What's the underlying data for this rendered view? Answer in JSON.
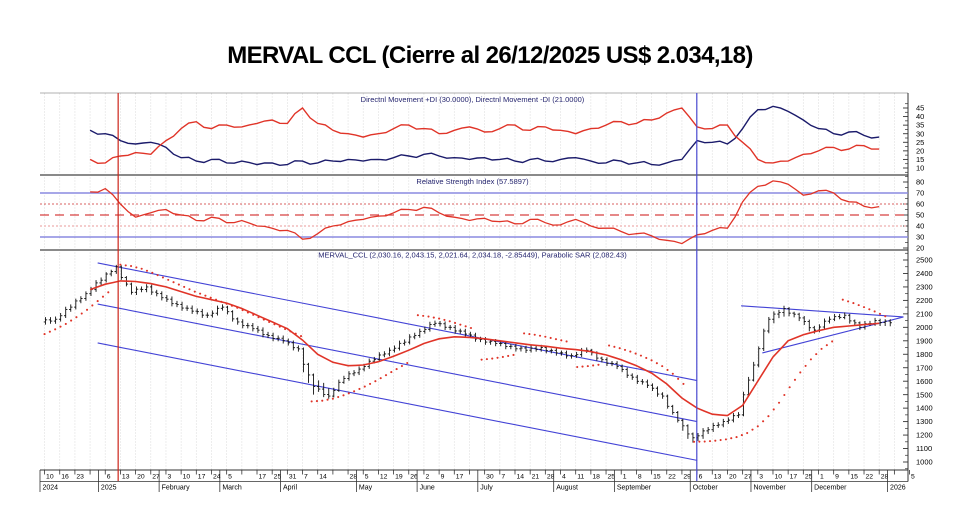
{
  "title": "MERVAL CCL (Cierre al 26/12/2025 US$ 2.034,18)",
  "colors": {
    "red_line": "#e03428",
    "navy_line": "#1b1b6b",
    "trend_blue": "#4343d6",
    "band_blue": "#8a8ae0",
    "event_red": "#cc2418",
    "event_blue": "#4a4ad0",
    "grid": "#cccccc",
    "separator": "#8a8a8a",
    "bar_black": "#111111",
    "label_navy": "#24246e"
  },
  "x_axis": {
    "tick_labels": [
      "10",
      "16",
      "23",
      "",
      "6",
      "13",
      "20",
      "27",
      "3",
      "10",
      "17",
      "24",
      "5",
      "",
      "17",
      "25",
      "31",
      "7",
      "14",
      "",
      "28",
      "5",
      "12",
      "19",
      "26",
      "2",
      "9",
      "17",
      "",
      "30",
      "7",
      "14",
      "21",
      "28",
      "4",
      "11",
      "18",
      "25",
      "1",
      "8",
      "15",
      "22",
      "29",
      "6",
      "13",
      "20",
      "27",
      "3",
      "10",
      "17",
      "25",
      "1",
      "9",
      "15",
      "22",
      "28",
      "",
      "5"
    ],
    "months": [
      {
        "label": "2024",
        "start": 0
      },
      {
        "label": "2025",
        "start": 4
      },
      {
        "label": "February",
        "start": 8
      },
      {
        "label": "March",
        "start": 12
      },
      {
        "label": "April",
        "start": 16
      },
      {
        "label": "May",
        "start": 21
      },
      {
        "label": "June",
        "start": 25
      },
      {
        "label": "July",
        "start": 29
      },
      {
        "label": "August",
        "start": 34
      },
      {
        "label": "September",
        "start": 38
      },
      {
        "label": "October",
        "start": 43
      },
      {
        "label": "November",
        "start": 47
      },
      {
        "label": "December",
        "start": 51
      },
      {
        "label": "2026",
        "start": 56
      }
    ]
  },
  "event_lines": [
    {
      "t": 4.85,
      "color": "#cc2418",
      "name": "red-marker-line"
    },
    {
      "t": 42.98,
      "color": "#4a4ad0",
      "name": "blue-marker-line"
    }
  ],
  "chart_data": [
    {
      "type": "line",
      "panel": "di",
      "title": "Directnl Movement +DI (30.0000), Directnl Movement -DI (21.0000)",
      "ylim": [
        6,
        54
      ],
      "yticks": [
        10,
        15,
        20,
        25,
        30,
        35,
        40,
        45
      ],
      "series": [
        {
          "name": "+DI",
          "color": "#1b1b6b",
          "values": [
            null,
            null,
            null,
            32,
            30,
            26,
            24,
            25,
            22,
            16,
            14,
            15,
            13,
            14,
            12,
            13,
            12,
            14,
            13,
            14,
            15,
            14,
            15,
            16,
            17,
            18,
            17,
            16,
            15,
            16,
            15,
            14,
            15,
            14,
            15,
            16,
            14,
            13,
            14,
            13,
            12,
            13,
            15,
            26,
            25,
            24,
            33,
            44,
            46,
            43,
            38,
            33,
            30,
            31,
            29,
            28
          ]
        },
        {
          "name": "-DI",
          "color": "#e03428",
          "values": [
            null,
            null,
            null,
            15,
            13,
            17,
            19,
            18,
            26,
            33,
            37,
            33,
            35,
            34,
            36,
            38,
            36,
            45,
            36,
            32,
            30,
            28,
            30,
            33,
            35,
            33,
            30,
            32,
            34,
            31,
            33,
            35,
            32,
            34,
            32,
            30,
            33,
            35,
            37,
            36,
            38,
            42,
            45,
            34,
            33,
            35,
            25,
            15,
            13,
            14,
            18,
            20,
            22,
            21,
            23,
            21
          ]
        }
      ]
    },
    {
      "type": "line",
      "panel": "rsi",
      "title": "Relative Strength Index (57.5897)",
      "ylim": [
        18,
        86
      ],
      "yticks": [
        20,
        30,
        40,
        50,
        60,
        70,
        80
      ],
      "ref_lines": [
        {
          "value": 70,
          "color": "#8a8ae0",
          "width": 1.4,
          "dash": ""
        },
        {
          "value": 30,
          "color": "#8a8ae0",
          "width": 1.4,
          "dash": ""
        },
        {
          "value": 60,
          "color": "#d96060",
          "width": 1,
          "dash": "2,2"
        },
        {
          "value": 40,
          "color": "#ea9a9a",
          "width": 1,
          "dash": "2,2"
        },
        {
          "value": 50,
          "color": "#d84040",
          "width": 1.2,
          "dash": "9,6"
        }
      ],
      "series": [
        {
          "name": "RSI",
          "color": "#e03428",
          "values": [
            null,
            null,
            null,
            71,
            74,
            60,
            48,
            52,
            55,
            50,
            45,
            48,
            43,
            45,
            40,
            38,
            36,
            28,
            33,
            40,
            44,
            46,
            49,
            52,
            55,
            57,
            52,
            48,
            45,
            47,
            44,
            42,
            46,
            43,
            41,
            46,
            40,
            38,
            35,
            33,
            31,
            27,
            24,
            32,
            36,
            38,
            62,
            76,
            81,
            78,
            68,
            72,
            70,
            62,
            58,
            57.6
          ]
        }
      ]
    },
    {
      "type": "candlestick",
      "panel": "price",
      "title": "MERVAL_CCL (2,030.16, 2,043.15, 2,021.64, 2,034.18, -2.85449), Parabolic SAR (2,082.43)",
      "ylim": [
        940,
        2575
      ],
      "yticks": [
        1000,
        1100,
        1200,
        1300,
        1400,
        1500,
        1600,
        1700,
        1800,
        1900,
        2000,
        2100,
        2200,
        2300,
        2400,
        2500
      ],
      "candles": [
        [
          2040,
          2085,
          2015,
          2060
        ],
        [
          2060,
          2175,
          2040,
          2150
        ],
        [
          2150,
          2270,
          2130,
          2250
        ],
        [
          2250,
          2375,
          2230,
          2350
        ],
        [
          2350,
          2465,
          2330,
          2450
        ],
        [
          2450,
          2460,
          2240,
          2260
        ],
        [
          2260,
          2325,
          2235,
          2300
        ],
        [
          2300,
          2320,
          2195,
          2220
        ],
        [
          2220,
          2245,
          2145,
          2170
        ],
        [
          2170,
          2195,
          2095,
          2120
        ],
        [
          2120,
          2145,
          2065,
          2090
        ],
        [
          2090,
          2175,
          2070,
          2150
        ],
        [
          2150,
          2160,
          2015,
          2040
        ],
        [
          2040,
          2065,
          1965,
          1990
        ],
        [
          1990,
          2015,
          1915,
          1940
        ],
        [
          1940,
          1965,
          1875,
          1900
        ],
        [
          1900,
          1920,
          1815,
          1840
        ],
        [
          1840,
          1850,
          1475,
          1560
        ],
        [
          1560,
          1625,
          1465,
          1490
        ],
        [
          1490,
          1645,
          1480,
          1620
        ],
        [
          1620,
          1715,
          1600,
          1690
        ],
        [
          1690,
          1785,
          1670,
          1760
        ],
        [
          1760,
          1855,
          1740,
          1830
        ],
        [
          1830,
          1915,
          1810,
          1890
        ],
        [
          1890,
          1995,
          1870,
          1970
        ],
        [
          1970,
          2055,
          1950,
          2030
        ],
        [
          2030,
          2050,
          1975,
          2000
        ],
        [
          2000,
          2020,
          1925,
          1950
        ],
        [
          1950,
          1970,
          1885,
          1910
        ],
        [
          1910,
          1930,
          1855,
          1880
        ],
        [
          1880,
          1900,
          1835,
          1860
        ],
        [
          1860,
          1880,
          1805,
          1830
        ],
        [
          1830,
          1875,
          1810,
          1850
        ],
        [
          1850,
          1865,
          1785,
          1810
        ],
        [
          1810,
          1830,
          1765,
          1790
        ],
        [
          1790,
          1855,
          1770,
          1830
        ],
        [
          1830,
          1840,
          1735,
          1760
        ],
        [
          1760,
          1780,
          1685,
          1710
        ],
        [
          1710,
          1725,
          1605,
          1630
        ],
        [
          1630,
          1650,
          1545,
          1570
        ],
        [
          1570,
          1585,
          1465,
          1490
        ],
        [
          1490,
          1500,
          1290,
          1310
        ],
        [
          1310,
          1320,
          1130,
          1180
        ],
        [
          1180,
          1265,
          1150,
          1240
        ],
        [
          1240,
          1325,
          1220,
          1300
        ],
        [
          1300,
          1375,
          1280,
          1350
        ],
        [
          1350,
          1750,
          1340,
          1720
        ],
        [
          1720,
          2080,
          1700,
          2060
        ],
        [
          2060,
          2165,
          2020,
          2140
        ],
        [
          2140,
          2150,
          2040,
          2070
        ],
        [
          2070,
          2085,
          1945,
          1980
        ],
        [
          1980,
          2085,
          1960,
          2060
        ],
        [
          2060,
          2115,
          2045,
          2090
        ],
        [
          2090,
          2100,
          1975,
          2000
        ],
        [
          2000,
          2075,
          1980,
          2050
        ],
        [
          2050,
          2065,
          2000,
          2034
        ]
      ],
      "ma": {
        "name": "moving-average",
        "color": "#e03428",
        "values": [
          null,
          null,
          null,
          2280,
          2320,
          2345,
          2340,
          2325,
          2300,
          2265,
          2230,
          2205,
          2180,
          2140,
          2090,
          2040,
          1990,
          1905,
          1800,
          1740,
          1715,
          1720,
          1745,
          1785,
          1830,
          1880,
          1915,
          1930,
          1925,
          1915,
          1900,
          1885,
          1870,
          1860,
          1845,
          1835,
          1820,
          1795,
          1760,
          1715,
          1660,
          1580,
          1475,
          1400,
          1355,
          1345,
          1420,
          1600,
          1780,
          1900,
          1945,
          1975,
          2000,
          2010,
          2020,
          2030
        ]
      },
      "sar_segments": [
        [
          [
            0,
            1950
          ],
          [
            0.7,
            1985
          ],
          [
            1.4,
            2025
          ],
          [
            2.1,
            2075
          ],
          [
            2.8,
            2130
          ],
          [
            3.5,
            2195
          ],
          [
            4.2,
            2260
          ]
        ],
        [
          [
            5,
            2465
          ],
          [
            5.7,
            2455
          ],
          [
            6.4,
            2435
          ],
          [
            7.1,
            2405
          ],
          [
            7.8,
            2370
          ],
          [
            8.5,
            2335
          ],
          [
            9.2,
            2300
          ],
          [
            9.9,
            2265
          ],
          [
            10.6,
            2235
          ],
          [
            11.3,
            2205
          ],
          [
            12,
            2175
          ],
          [
            12.7,
            2145
          ],
          [
            13.4,
            2110
          ],
          [
            14.1,
            2075
          ],
          [
            14.8,
            2040
          ],
          [
            15.5,
            2005
          ],
          [
            16.2,
            1970
          ],
          [
            16.9,
            1935
          ]
        ],
        [
          [
            17.6,
            1450
          ],
          [
            18.3,
            1455
          ],
          [
            19,
            1470
          ],
          [
            19.7,
            1495
          ],
          [
            20.4,
            1525
          ],
          [
            21.1,
            1560
          ],
          [
            21.8,
            1600
          ],
          [
            22.5,
            1645
          ],
          [
            23.2,
            1690
          ],
          [
            23.9,
            1735
          ]
        ],
        [
          [
            24.6,
            2090
          ],
          [
            25.3,
            2080
          ],
          [
            26,
            2065
          ],
          [
            26.7,
            2045
          ],
          [
            27.4,
            2020
          ],
          [
            28.1,
            1995
          ]
        ],
        [
          [
            28.8,
            1760
          ],
          [
            29.5,
            1768
          ],
          [
            30.2,
            1780
          ],
          [
            30.9,
            1795
          ]
        ],
        [
          [
            31.6,
            1955
          ],
          [
            32.3,
            1945
          ],
          [
            33,
            1930
          ],
          [
            33.7,
            1912
          ],
          [
            34.4,
            1895
          ]
        ],
        [
          [
            35.1,
            1705
          ],
          [
            35.8,
            1712
          ],
          [
            36.5,
            1722
          ]
        ],
        [
          [
            37.2,
            1865
          ],
          [
            37.9,
            1845
          ],
          [
            38.6,
            1820
          ],
          [
            39.3,
            1790
          ],
          [
            40,
            1755
          ],
          [
            40.7,
            1712
          ],
          [
            41.4,
            1655
          ],
          [
            42.1,
            1580
          ]
        ],
        [
          [
            42.8,
            1150
          ],
          [
            43.5,
            1152
          ],
          [
            44.2,
            1158
          ],
          [
            44.9,
            1168
          ],
          [
            45.6,
            1185
          ],
          [
            46.3,
            1215
          ],
          [
            47,
            1265
          ],
          [
            47.7,
            1340
          ],
          [
            48.4,
            1440
          ],
          [
            49.1,
            1555
          ],
          [
            49.8,
            1665
          ],
          [
            50.5,
            1762
          ],
          [
            51.2,
            1840
          ],
          [
            51.9,
            1895
          ]
        ],
        [
          [
            52.6,
            2205
          ],
          [
            53.3,
            2180
          ],
          [
            54,
            2150
          ],
          [
            54.7,
            2118
          ],
          [
            55.4,
            2082
          ]
        ]
      ],
      "trendlines": [
        {
          "name": "channel-upper",
          "x": [
            3.5,
            43
          ],
          "v": [
            2478,
            1605
          ]
        },
        {
          "name": "channel-middle",
          "x": [
            3.5,
            43
          ],
          "v": [
            2173,
            1300
          ]
        },
        {
          "name": "channel-lower",
          "x": [
            3.5,
            43
          ],
          "v": [
            1884,
            1012
          ]
        },
        {
          "name": "wedge-upper",
          "x": [
            45.9,
            56.6
          ],
          "v": [
            2160,
            2077
          ]
        },
        {
          "name": "wedge-lower",
          "x": [
            47.3,
            56.6
          ],
          "v": [
            1810,
            2077
          ]
        }
      ]
    }
  ]
}
